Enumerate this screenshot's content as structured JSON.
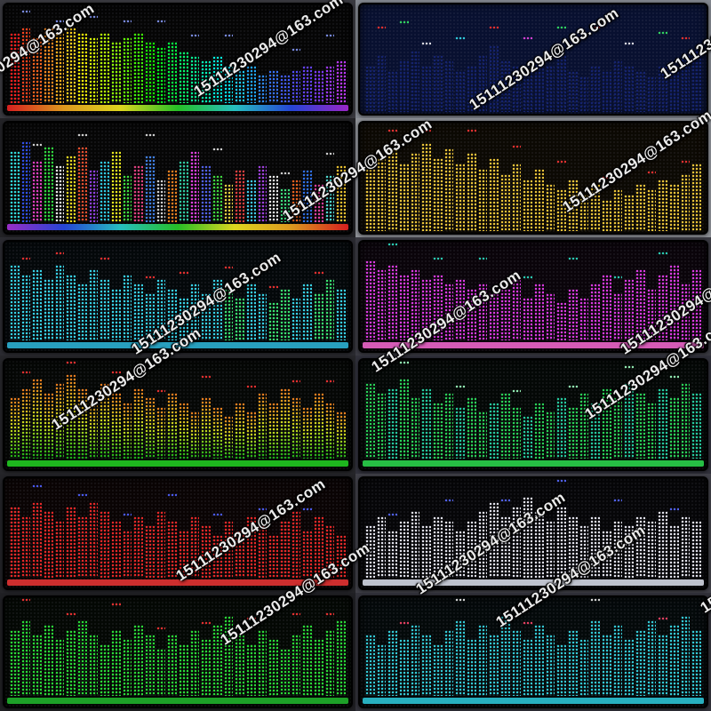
{
  "watermark": {
    "text": "15111230294@163.com",
    "rotation_deg": -33,
    "positions": [
      [
        -60,
        105
      ],
      [
        220,
        95
      ],
      [
        530,
        110
      ],
      [
        745,
        75
      ],
      [
        320,
        235
      ],
      [
        635,
        225
      ],
      [
        150,
        385
      ],
      [
        420,
        405
      ],
      [
        700,
        385
      ],
      [
        60,
        470
      ],
      [
        660,
        458
      ],
      [
        200,
        640
      ],
      [
        470,
        655
      ],
      [
        250,
        712
      ],
      [
        560,
        692
      ],
      [
        790,
        676
      ]
    ]
  },
  "grid": {
    "rows": 6,
    "cols": 2
  },
  "panels": [
    {
      "name": "rainbow",
      "cell_bg": "#3a3a40",
      "panel_bg": "#050505",
      "bar_colors": [
        "hsl(0,95%,55%)",
        "hsl(10,95%,55%)",
        "hsl(19,95%,55%)",
        "hsl(29,95%,55%)",
        "hsl(39,95%,55%)",
        "hsl(48,95%,55%)",
        "hsl(58,95%,50%)",
        "hsl(68,95%,50%)",
        "hsl(77,95%,50%)",
        "hsl(87,95%,50%)",
        "hsl(97,95%,50%)",
        "hsl(106,95%,50%)",
        "hsl(116,95%,50%)",
        "hsl(126,95%,50%)",
        "hsl(135,95%,50%)",
        "hsl(145,95%,50%)",
        "hsl(155,95%,50%)",
        "hsl(164,95%,50%)",
        "hsl(174,95%,50%)",
        "hsl(184,95%,50%)",
        "hsl(193,95%,55%)",
        "hsl(203,95%,55%)",
        "hsl(213,95%,58%)",
        "hsl(222,95%,60%)",
        "hsl(232,95%,62%)",
        "hsl(242,95%,64%)",
        "hsl(251,95%,62%)",
        "hsl(261,95%,60%)",
        "hsl(271,95%,60%)",
        "hsl(280,95%,60%)"
      ],
      "bars": [
        15,
        16,
        14,
        16,
        15,
        16,
        15,
        14,
        15,
        13,
        14,
        15,
        13,
        12,
        13,
        11,
        10,
        9,
        10,
        8,
        7,
        8,
        6,
        7,
        6,
        7,
        8,
        7,
        8,
        9
      ],
      "peak_color": "#7788dd",
      "peaks": [
        {
          "i": 1,
          "o": 3
        },
        {
          "i": 4,
          "o": 2
        },
        {
          "i": 7,
          "o": 4
        },
        {
          "i": 10,
          "o": 3
        },
        {
          "i": 13,
          "o": 5
        },
        {
          "i": 16,
          "o": 4
        },
        {
          "i": 19,
          "o": 6
        },
        {
          "i": 22,
          "o": 5
        },
        {
          "i": 25,
          "o": 4
        },
        {
          "i": 28,
          "o": 6
        }
      ],
      "strip": "linear-gradient(90deg,#e02020,#e8a020,#e8e020,#28c828,#28c8c8,#2848e0,#a028d0)"
    },
    {
      "name": "navy",
      "cell_bg": "#82868e",
      "panel_bg": "#081030",
      "bar_color": "#15236e",
      "bars": [
        9,
        11,
        8,
        10,
        12,
        9,
        11,
        10,
        8,
        9,
        11,
        13,
        10,
        9,
        8,
        10,
        9,
        11,
        8,
        7,
        9,
        8,
        10,
        9,
        8,
        7,
        9,
        8,
        11,
        12
      ],
      "peak_color": "#d8d8e0",
      "peaks": [
        {
          "i": 1,
          "o": 5,
          "c": "#e03030"
        },
        {
          "i": 3,
          "o": 7,
          "c": "#30d060"
        },
        {
          "i": 5,
          "o": 4,
          "c": "#d8d8e0"
        },
        {
          "i": 8,
          "o": 6,
          "c": "#30c8d8"
        },
        {
          "i": 11,
          "o": 3,
          "c": "#e03030"
        },
        {
          "i": 14,
          "o": 6,
          "c": "#d040d0"
        },
        {
          "i": 17,
          "o": 5,
          "c": "#30d060"
        },
        {
          "i": 20,
          "o": 7,
          "c": "#e03030"
        },
        {
          "i": 23,
          "o": 4,
          "c": "#d8d8e0"
        },
        {
          "i": 26,
          "o": 6,
          "c": "#30d060"
        },
        {
          "i": 28,
          "o": 3,
          "c": "#e03030"
        }
      ],
      "strip": null
    },
    {
      "name": "multicolor",
      "cell_bg": "#232327",
      "panel_bg": "#060606",
      "bar_colors": [
        "#30d8d8",
        "#3050e8",
        "#e040c0",
        "#30d840",
        "#e8e8e8",
        "#e8d820",
        "#e85030",
        "#9040e0",
        "#30c8e0",
        "#e8e820",
        "#40e040",
        "#e04080",
        "#4080e8",
        "#d0d0d0",
        "#e88020",
        "#30c8a0",
        "#e040e0",
        "#5060e8",
        "#40d840",
        "#e8d040",
        "#e04040",
        "#40c8e8",
        "#a040e0",
        "#e8e8e8",
        "#40e080",
        "#e86020",
        "#3070e8",
        "#e040a0",
        "#50d8d0",
        "#e8c030"
      ],
      "bars": [
        15,
        17,
        13,
        16,
        12,
        14,
        16,
        11,
        13,
        15,
        10,
        12,
        14,
        9,
        11,
        13,
        15,
        12,
        10,
        8,
        11,
        9,
        12,
        10,
        7,
        9,
        11,
        8,
        10,
        12
      ],
      "peak_color": "#cccccc",
      "peaks": [
        {
          "i": 2,
          "o": 3
        },
        {
          "i": 6,
          "o": 2
        },
        {
          "i": 12,
          "o": 4
        },
        {
          "i": 18,
          "o": 5
        },
        {
          "i": 24,
          "o": 3
        },
        {
          "i": 28,
          "o": 4
        }
      ],
      "strip": "linear-gradient(90deg,#a030d0,#2848e0,#28c8c8,#28c828,#e8e020,#e8a020,#e02020)"
    },
    {
      "name": "amber",
      "cell_bg": "#8d9096",
      "panel_bg": "#0c0903",
      "bar_color": "#e8c23a",
      "bars": [
        12,
        14,
        16,
        13,
        15,
        17,
        14,
        16,
        13,
        15,
        12,
        14,
        11,
        13,
        10,
        12,
        9,
        8,
        10,
        7,
        9,
        6,
        8,
        7,
        9,
        8,
        10,
        9,
        11,
        13
      ],
      "peak_color": "#e03030",
      "peaks": [
        {
          "i": 2,
          "o": 3
        },
        {
          "i": 5,
          "o": 2
        },
        {
          "i": 9,
          "o": 4
        },
        {
          "i": 13,
          "o": 3
        },
        {
          "i": 17,
          "o": 5
        },
        {
          "i": 21,
          "o": 4
        },
        {
          "i": 25,
          "o": 3
        },
        {
          "i": 28,
          "o": 2
        }
      ],
      "strip": null
    },
    {
      "name": "cyan-green",
      "cell_bg": "#2b2b31",
      "panel_bg": "#04080a",
      "bar_colors": [
        "#38d0e6",
        "#38d0e6",
        "#38d0e6",
        "#38d0e6",
        "#38d0e6",
        "#38d0e6",
        "#38d0e6",
        "#38d0e6",
        "#38d0e6",
        "#38d0e6",
        "#38d0e6",
        "#38d0e6",
        "#38d0e6",
        "#38d0e6",
        "#38d0e6",
        "#38d0e6",
        "#38d0e6",
        "#38d0e6",
        "#38d0e6",
        "#3ae070",
        "#3ae070",
        "#38d0e6",
        "#38d0e6",
        "#3ae070",
        "#3ae070",
        "#38d0e6",
        "#38d0e6",
        "#3ae070",
        "#3ae070",
        "#38d0e6"
      ],
      "bars": [
        16,
        14,
        15,
        13,
        16,
        14,
        12,
        15,
        13,
        11,
        14,
        12,
        10,
        13,
        11,
        9,
        12,
        10,
        13,
        11,
        9,
        12,
        10,
        8,
        11,
        9,
        12,
        10,
        13,
        11
      ],
      "peak_color": "#e03030",
      "peaks": [
        {
          "i": 1,
          "o": 3
        },
        {
          "i": 4,
          "o": 2
        },
        {
          "i": 8,
          "o": 4
        },
        {
          "i": 12,
          "o": 3
        },
        {
          "i": 15,
          "o": 5
        },
        {
          "i": 19,
          "o": 4
        },
        {
          "i": 23,
          "o": 3
        },
        {
          "i": 27,
          "o": 4
        }
      ],
      "strip": "#2aa8c8"
    },
    {
      "name": "magenta",
      "cell_bg": "#3a3a42",
      "panel_bg": "#0a040a",
      "bar_color": "#d83ae0",
      "bars": [
        17,
        15,
        16,
        14,
        15,
        13,
        14,
        12,
        13,
        11,
        12,
        10,
        11,
        13,
        9,
        12,
        10,
        8,
        11,
        9,
        12,
        14,
        10,
        13,
        15,
        11,
        14,
        16,
        12,
        15
      ],
      "peak_color": "#2ac8b0",
      "peaks": [
        {
          "i": 2,
          "o": 4
        },
        {
          "i": 6,
          "o": 3
        },
        {
          "i": 10,
          "o": 5
        },
        {
          "i": 14,
          "o": 4
        },
        {
          "i": 18,
          "o": 6
        },
        {
          "i": 22,
          "o": 3
        },
        {
          "i": 26,
          "o": 4
        }
      ],
      "strip": "#e060c0"
    },
    {
      "name": "green-yellow-red",
      "cell_bg": "#26262a",
      "panel_bg": "#050705",
      "bar_gradient": [
        "#18b018",
        "#c8d820",
        "#e87820"
      ],
      "bars": [
        13,
        15,
        17,
        14,
        16,
        18,
        15,
        13,
        16,
        14,
        12,
        15,
        13,
        11,
        14,
        12,
        10,
        13,
        11,
        9,
        12,
        10,
        14,
        12,
        15,
        13,
        11,
        14,
        12,
        10
      ],
      "peak_color": "#e03030",
      "peaks": [
        {
          "i": 1,
          "o": 3
        },
        {
          "i": 5,
          "o": 2
        },
        {
          "i": 9,
          "o": 4
        },
        {
          "i": 13,
          "o": 3
        },
        {
          "i": 17,
          "o": 4
        },
        {
          "i": 21,
          "o": 5
        },
        {
          "i": 25,
          "o": 3
        },
        {
          "i": 28,
          "o": 4
        }
      ],
      "strip": "#20c020"
    },
    {
      "name": "green-teal",
      "cell_bg": "#30303a",
      "panel_bg": "#040806",
      "bar_colors": [
        "#2ad058",
        "#2ad058",
        "#26c89e",
        "#2ad058",
        "#2ad058",
        "#26c89e",
        "#2ad058",
        "#2ad058",
        "#26c89e",
        "#2ad058",
        "#2ad058",
        "#26c89e",
        "#2ad058",
        "#2ad058",
        "#26c89e",
        "#2ad058",
        "#2ad058",
        "#26c89e",
        "#2ad058",
        "#2ad058",
        "#26c89e",
        "#2ad058",
        "#2ad058",
        "#26c89e",
        "#2ad058",
        "#2ad058",
        "#26c89e",
        "#2ad058",
        "#2ad058",
        "#26c89e"
      ],
      "bars": [
        16,
        14,
        15,
        17,
        13,
        15,
        12,
        14,
        11,
        13,
        10,
        12,
        14,
        11,
        9,
        12,
        10,
        13,
        11,
        14,
        12,
        15,
        13,
        16,
        14,
        12,
        15,
        13,
        16,
        14
      ],
      "peak_color": "#90e8b0",
      "peaks": [
        {
          "i": 3,
          "o": 3
        },
        {
          "i": 8,
          "o": 4
        },
        {
          "i": 13,
          "o": 3
        },
        {
          "i": 18,
          "o": 4
        },
        {
          "i": 23,
          "o": 3
        },
        {
          "i": 27,
          "o": 4
        }
      ],
      "strip": "#28c848"
    },
    {
      "name": "red",
      "cell_bg": "#242428",
      "panel_bg": "#0a0404",
      "bar_color": "#e42828",
      "bars": [
        15,
        13,
        16,
        14,
        12,
        15,
        13,
        16,
        14,
        12,
        10,
        13,
        11,
        14,
        12,
        10,
        13,
        11,
        9,
        12,
        10,
        13,
        11,
        9,
        12,
        14,
        10,
        13,
        11,
        9
      ],
      "peak_color": "#4858e8",
      "peaks": [
        {
          "i": 2,
          "o": 3
        },
        {
          "i": 6,
          "o": 4
        },
        {
          "i": 10,
          "o": 3
        },
        {
          "i": 14,
          "o": 5
        },
        {
          "i": 18,
          "o": 4
        },
        {
          "i": 22,
          "o": 3
        },
        {
          "i": 26,
          "o": 4
        }
      ],
      "strip": "#d83030"
    },
    {
      "name": "white",
      "cell_bg": "#3f3f47",
      "panel_bg": "#060608",
      "bar_color": "#e0e0ea",
      "bars": [
        11,
        13,
        10,
        12,
        14,
        11,
        13,
        12,
        10,
        12,
        14,
        16,
        13,
        15,
        17,
        14,
        12,
        15,
        13,
        11,
        13,
        10,
        12,
        11,
        13,
        12,
        14,
        11,
        13,
        12
      ],
      "peak_color": "#5060e8",
      "peaks": [
        {
          "i": 2,
          "o": 3
        },
        {
          "i": 7,
          "o": 4
        },
        {
          "i": 12,
          "o": 3
        },
        {
          "i": 17,
          "o": 5
        },
        {
          "i": 22,
          "o": 4
        },
        {
          "i": 27,
          "o": 3
        }
      ],
      "strip": "#c8ccd8"
    },
    {
      "name": "green",
      "cell_bg": "#202024",
      "panel_bg": "#040804",
      "bar_color": "#2ad838",
      "bars": [
        14,
        16,
        13,
        15,
        12,
        14,
        16,
        13,
        11,
        14,
        12,
        15,
        13,
        10,
        13,
        11,
        14,
        12,
        15,
        17,
        13,
        11,
        14,
        12,
        10,
        13,
        15,
        12,
        14,
        16
      ],
      "peak_color": "#e03030",
      "peaks": [
        {
          "i": 1,
          "o": 4
        },
        {
          "i": 5,
          "o": 3
        },
        {
          "i": 9,
          "o": 5
        },
        {
          "i": 13,
          "o": 4
        },
        {
          "i": 17,
          "o": 3
        },
        {
          "i": 21,
          "o": 5
        },
        {
          "i": 25,
          "o": 4
        },
        {
          "i": 28,
          "o": 3
        }
      ],
      "strip": "#1fa82a"
    },
    {
      "name": "cyan",
      "cell_bg": "#32323a",
      "panel_bg": "#04090a",
      "bar_color": "#34c8d4",
      "bars": [
        13,
        11,
        14,
        12,
        15,
        13,
        11,
        14,
        16,
        12,
        15,
        13,
        17,
        14,
        12,
        15,
        13,
        11,
        14,
        12,
        16,
        13,
        15,
        12,
        14,
        16,
        13,
        15,
        17,
        14
      ],
      "peak_color": "#e04060",
      "peaks": [
        {
          "i": 3,
          "o": 3,
          "c": "#e04060"
        },
        {
          "i": 8,
          "o": 4,
          "c": "#d0d0d0"
        },
        {
          "i": 14,
          "o": 3,
          "c": "#e04060"
        },
        {
          "i": 20,
          "o": 4,
          "c": "#d0d0d0"
        },
        {
          "i": 26,
          "o": 3,
          "c": "#e04060"
        }
      ],
      "strip": "#2ab8c8"
    }
  ]
}
